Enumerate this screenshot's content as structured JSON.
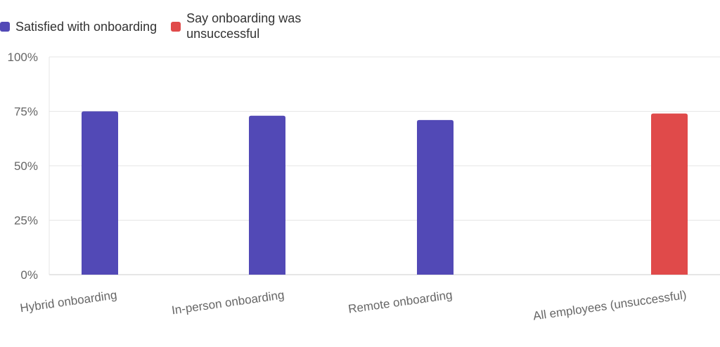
{
  "chart_data": {
    "type": "bar",
    "categories": [
      "Hybrid onboarding",
      "In-person onboarding",
      "Remote onboarding",
      "All employees (unsuccessful)"
    ],
    "series": [
      {
        "name": "Satisfied with onboarding",
        "color": "#5249b6",
        "values": [
          75,
          73,
          71,
          null
        ]
      },
      {
        "name": "Say onboarding was unsuccessful",
        "color": "#e04a4a",
        "values": [
          null,
          null,
          null,
          74
        ]
      }
    ],
    "yticks": [
      "0%",
      "25%",
      "50%",
      "75%",
      "100%"
    ],
    "ylim": [
      0,
      100
    ],
    "grid": true,
    "legend_position": "top-left"
  }
}
